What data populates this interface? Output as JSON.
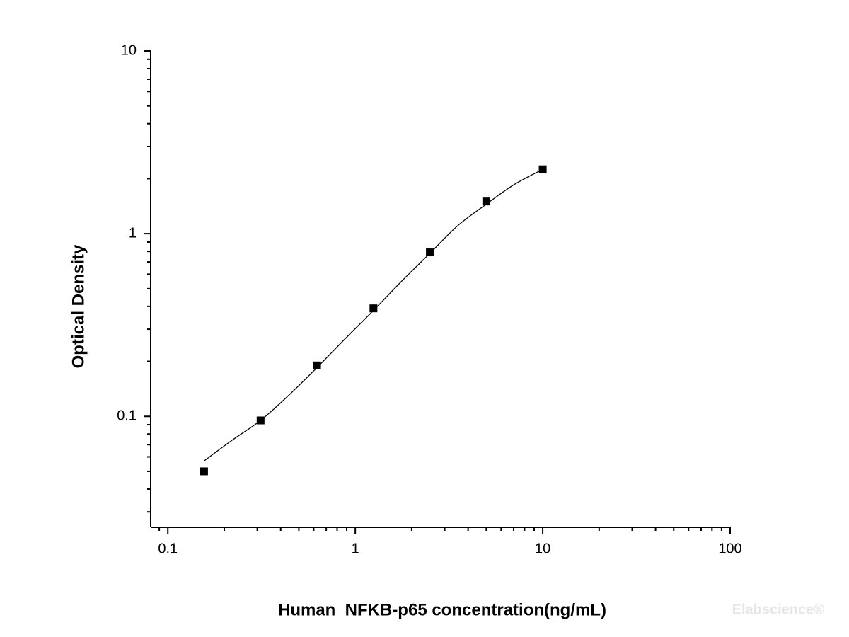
{
  "chart_data": {
    "type": "scatter",
    "x_label": "Human  NFKB-p65 concentration(ng/mL)",
    "y_label": "Optical Density",
    "watermark": "Elabscience®",
    "xscale": "log",
    "yscale": "log",
    "xlim": [
      0.081,
      100
    ],
    "ylim": [
      0.0247,
      10
    ],
    "xticks": [
      0.1,
      1,
      10,
      100
    ],
    "yticks": [
      0.1,
      1,
      10
    ],
    "minor_ticks": true,
    "series": [
      {
        "color": "#000000",
        "marker": "square",
        "x": [
          0.156,
          0.3125,
          0.625,
          1.25,
          2.5,
          5,
          10
        ],
        "values": [
          0.05,
          0.095,
          0.19,
          0.39,
          0.79,
          1.5,
          2.25
        ]
      },
      {
        "color": "#000000",
        "marker": "line",
        "x": [
          0.156,
          0.22,
          0.3125,
          0.44,
          0.625,
          0.88,
          1.25,
          1.77,
          2.5,
          3.5,
          5,
          7,
          10
        ],
        "values": [
          0.057,
          0.074,
          0.095,
          0.13,
          0.185,
          0.265,
          0.38,
          0.55,
          0.78,
          1.1,
          1.45,
          1.85,
          2.25
        ]
      }
    ]
  }
}
